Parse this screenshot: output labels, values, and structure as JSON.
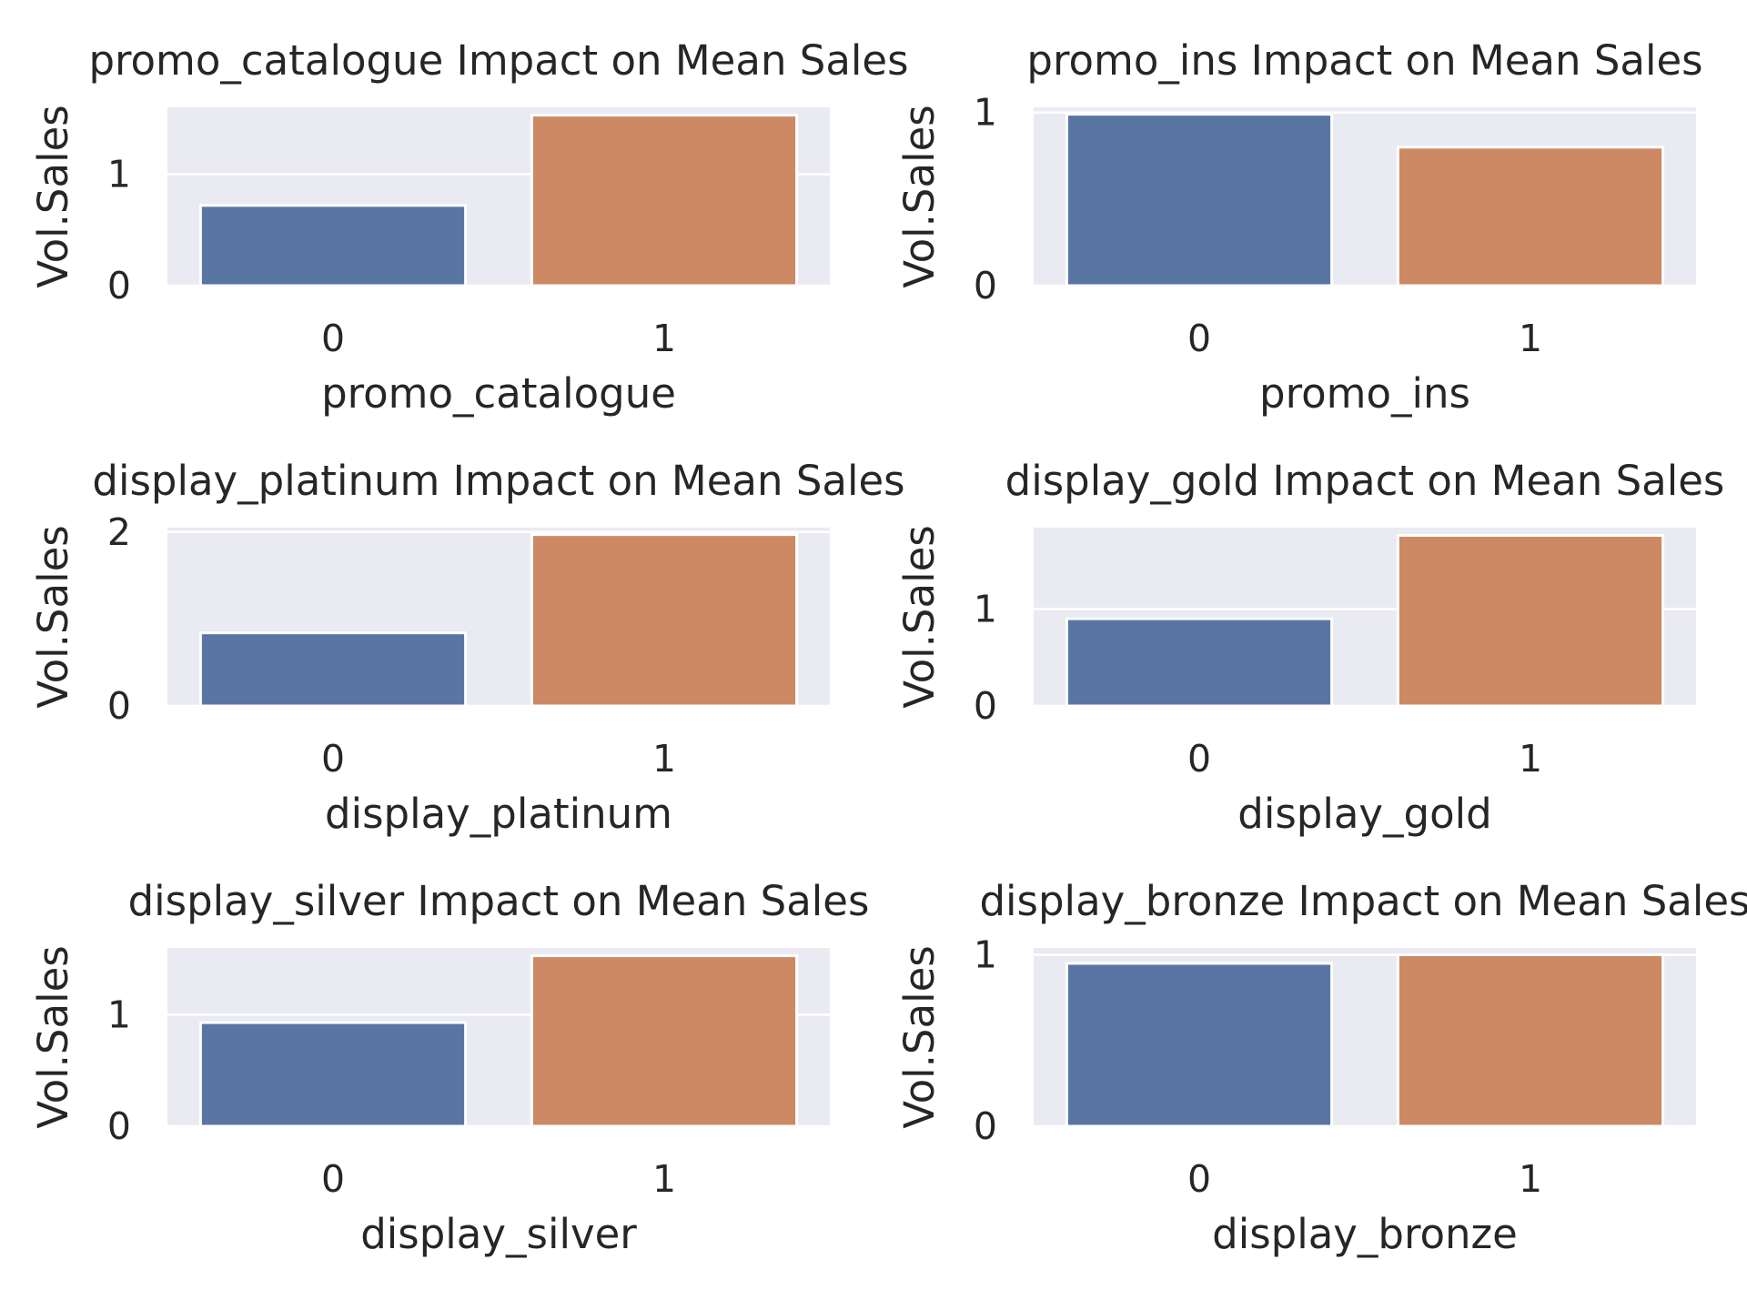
{
  "palette": {
    "cat0": "#5975a4",
    "cat1": "#cc8963",
    "background": "#eaeaf2"
  },
  "chart_data": [
    {
      "type": "bar",
      "title": "promo_catalogue Impact on Mean Sales",
      "xlabel": "promo_catalogue",
      "ylabel": "Vol.Sales",
      "categories": [
        "0",
        "1"
      ],
      "values": [
        0.72,
        1.53
      ],
      "ylim": [
        0,
        1.6
      ],
      "yticks": [
        0,
        1
      ],
      "grid": true
    },
    {
      "type": "bar",
      "title": "promo_ins Impact on Mean Sales",
      "xlabel": "promo_ins",
      "ylabel": "Vol.Sales",
      "categories": [
        "0",
        "1"
      ],
      "values": [
        0.99,
        0.8
      ],
      "ylim": [
        0,
        1.03
      ],
      "yticks": [
        0,
        1
      ],
      "grid": true
    },
    {
      "type": "bar",
      "title": "display_platinum Impact on Mean Sales",
      "xlabel": "display_platinum",
      "ylabel": "Vol.Sales",
      "categories": [
        "0",
        "1"
      ],
      "values": [
        0.84,
        1.97
      ],
      "ylim": [
        0,
        2.05
      ],
      "yticks": [
        0,
        2
      ],
      "grid": true
    },
    {
      "type": "bar",
      "title": "display_gold Impact on Mean Sales",
      "xlabel": "display_gold",
      "ylabel": "Vol.Sales",
      "categories": [
        "0",
        "1"
      ],
      "values": [
        0.9,
        1.76
      ],
      "ylim": [
        0,
        1.84
      ],
      "yticks": [
        0,
        1
      ],
      "grid": true
    },
    {
      "type": "bar",
      "title": "display_silver Impact on Mean Sales",
      "xlabel": "display_silver",
      "ylabel": "Vol.Sales",
      "categories": [
        "0",
        "1"
      ],
      "values": [
        0.93,
        1.53
      ],
      "ylim": [
        0,
        1.6
      ],
      "yticks": [
        0,
        1
      ],
      "grid": true
    },
    {
      "type": "bar",
      "title": "display_bronze Impact on Mean Sales",
      "xlabel": "display_bronze",
      "ylabel": "Vol.Sales",
      "categories": [
        "0",
        "1"
      ],
      "values": [
        0.95,
        1.0
      ],
      "ylim": [
        0,
        1.04
      ],
      "yticks": [
        0,
        1
      ],
      "grid": true
    }
  ]
}
